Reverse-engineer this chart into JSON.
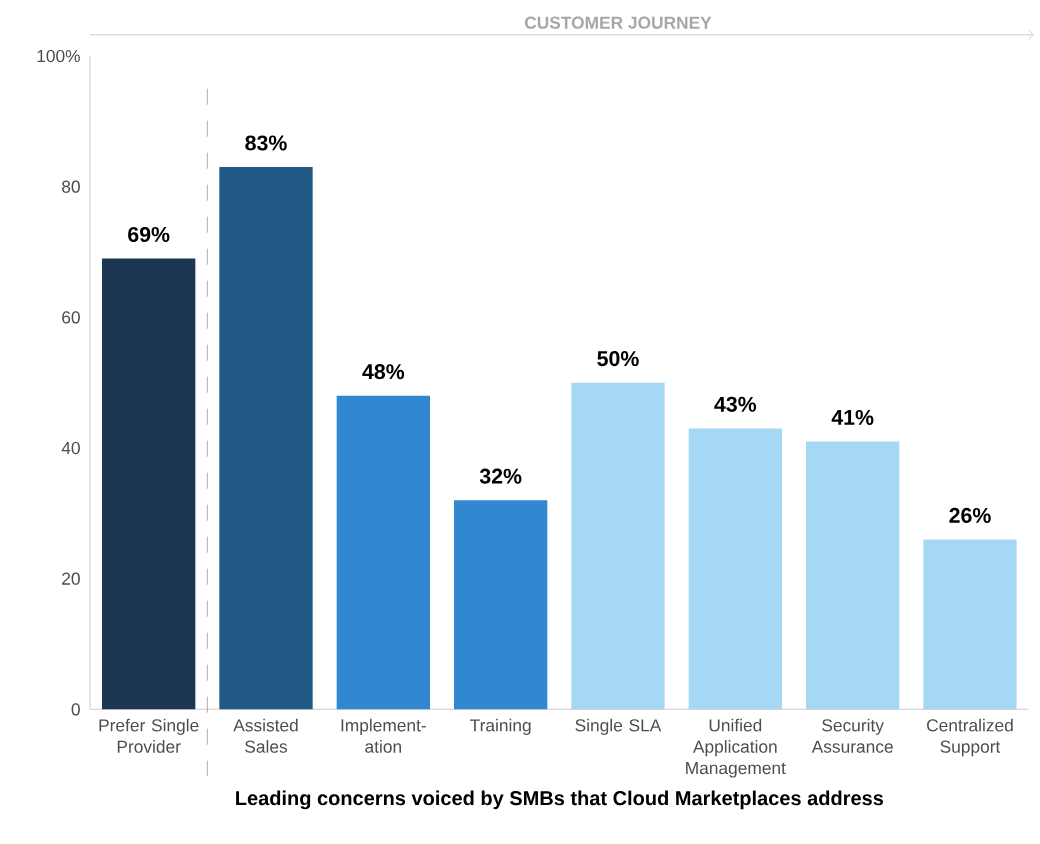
{
  "chart_data": {
    "type": "bar",
    "xlabel": "Leading concerns voiced by SMBs that Cloud Marketplaces address",
    "categories": [
      "Prefer Single Provider",
      "Assisted Sales",
      "Implement-ation",
      "Training",
      "Single SLA",
      "Unified Application Management",
      "Security Assurance",
      "Centralized Support"
    ],
    "values": [
      69,
      83,
      48,
      32,
      50,
      43,
      41,
      26
    ],
    "value_labels": [
      "69%",
      "83%",
      "48%",
      "32%",
      "50%",
      "43%",
      "41%",
      "26%"
    ],
    "colors": [
      "#1d3653",
      "#215a85",
      "#3188d0",
      "#3188d0",
      "#a6d8f5",
      "#a6d8f5",
      "#a6d8f5",
      "#a6d8f5"
    ],
    "ylim": [
      0,
      100
    ],
    "yticks": [
      0,
      20,
      40,
      60,
      80,
      {
        "value": 100,
        "label": "100%"
      }
    ],
    "annotations": [
      "CUSTOMER JOURNEY"
    ]
  }
}
